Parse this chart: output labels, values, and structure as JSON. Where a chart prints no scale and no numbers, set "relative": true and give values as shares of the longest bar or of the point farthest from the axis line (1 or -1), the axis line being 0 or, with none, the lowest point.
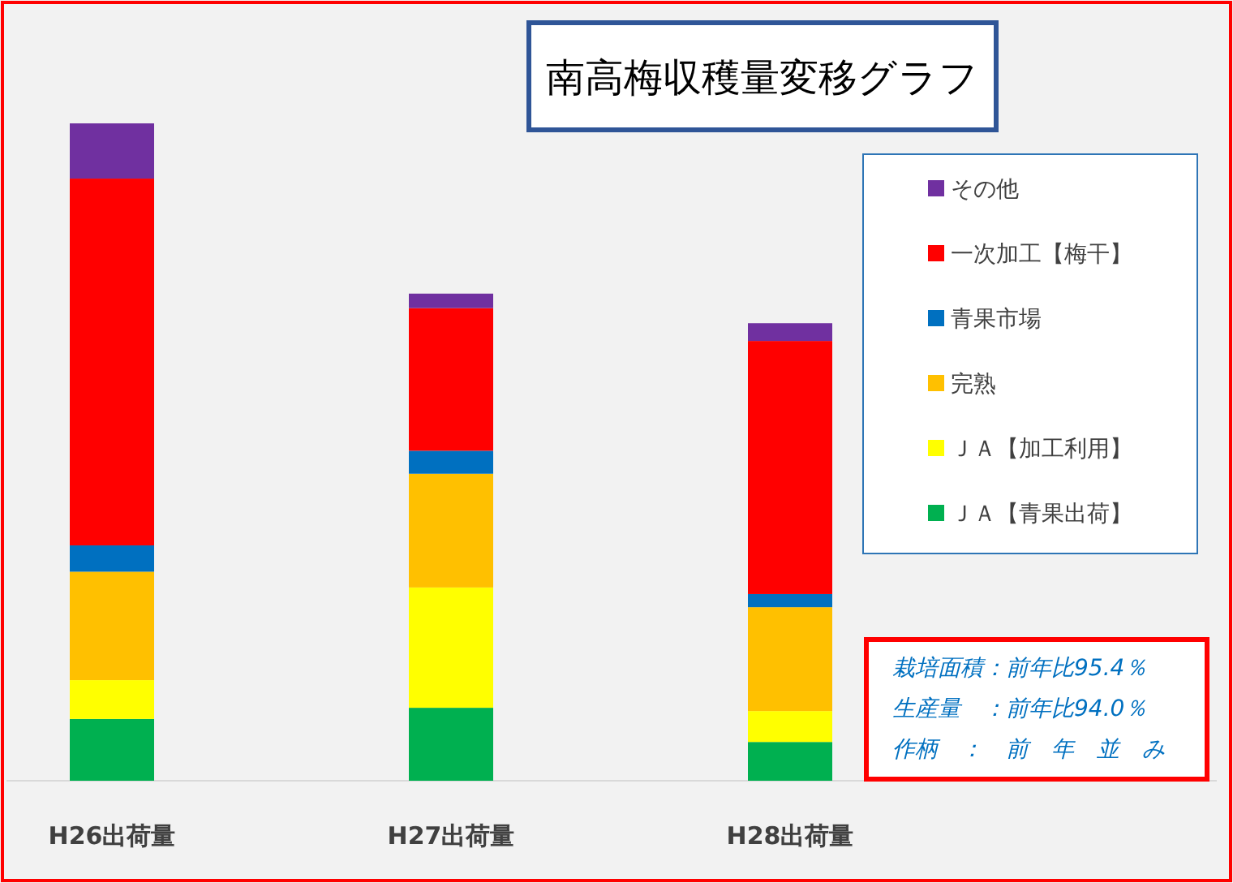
{
  "chart_data": {
    "type": "bar",
    "title": "南高梅収穫量変移グラフ",
    "categories": [
      "H26出荷量",
      "H27出荷量",
      "H28出荷量"
    ],
    "stacked": true,
    "relative": true,
    "legend": "right",
    "series": [
      {
        "name": "ＪＡ【青果出荷】",
        "color": "#00b050",
        "values": [
          0.094,
          0.111,
          0.059
        ]
      },
      {
        "name": "ＪＡ【加工利用】",
        "color": "#ffff00",
        "values": [
          0.059,
          0.183,
          0.047
        ]
      },
      {
        "name": "完熟",
        "color": "#ffc000",
        "values": [
          0.165,
          0.173,
          0.158
        ]
      },
      {
        "name": "青果市場",
        "color": "#0070c0",
        "values": [
          0.04,
          0.035,
          0.02
        ]
      },
      {
        "name": "一次加工【梅干】",
        "color": "#ff0000",
        "values": [
          0.558,
          0.217,
          0.385
        ]
      },
      {
        "name": "その他",
        "color": "#7030a0",
        "values": [
          0.084,
          0.022,
          0.027
        ]
      }
    ],
    "annotations": [
      "栽培面積：前年比95.4％",
      "生産量　：前年比94.0％",
      "作柄　：　前　年　並　み"
    ]
  }
}
